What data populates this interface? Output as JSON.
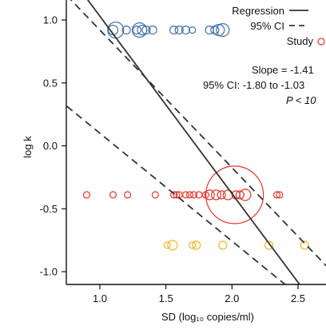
{
  "chart_data": {
    "type": "scatter",
    "xlabel": "SD (log₁₀ copies/ml)",
    "ylabel": "log k",
    "xlim": [
      0.75,
      2.75
    ],
    "ylim": [
      -1.1,
      1.08
    ],
    "x_ticks": [
      "1.0",
      "1.5",
      "2.0",
      "2.5"
    ],
    "x_tick_values": [
      1.0,
      1.5,
      2.0,
      2.5
    ],
    "y_ticks": [
      "1.0",
      "0.5",
      "0.0",
      "-0.5",
      "-1.0"
    ],
    "y_tick_values": [
      1.0,
      0.5,
      0.0,
      -0.5,
      -1.0
    ],
    "grid": false,
    "legend": {
      "placement": "top-right",
      "entries": [
        {
          "label": "Regression",
          "style": "solid"
        },
        {
          "label": "95% CI",
          "style": "dashed"
        },
        {
          "label": "Study",
          "style": "circle",
          "color": "#e8342b"
        }
      ]
    },
    "annotations": {
      "slope": "Slope = -1.41",
      "ci": "95% CI: -1.80 to -1.03",
      "p": "P < 10"
    },
    "regression": {
      "slope": -1.41,
      "intercept": 2.44
    },
    "ci_lines": [
      {
        "x": [
          1.0,
          2.5
        ],
        "y": [
          0.92,
          -0.72
        ]
      },
      {
        "x": [
          1.0,
          2.4
        ],
        "y": [
          0.1,
          -1.1
        ]
      }
    ],
    "series": [
      {
        "color": "#3e72a8",
        "points": [
          {
            "x": 1.1,
            "y": 0.92,
            "r": 6
          },
          {
            "x": 1.12,
            "y": 0.92,
            "r": 10
          },
          {
            "x": 1.2,
            "y": 0.92,
            "r": 5
          },
          {
            "x": 1.28,
            "y": 0.92,
            "r": 5
          },
          {
            "x": 1.3,
            "y": 0.92,
            "r": 9
          },
          {
            "x": 1.32,
            "y": 0.92,
            "r": 6
          },
          {
            "x": 1.35,
            "y": 0.92,
            "r": 5
          },
          {
            "x": 1.4,
            "y": 0.92,
            "r": 5
          },
          {
            "x": 1.56,
            "y": 0.92,
            "r": 5
          },
          {
            "x": 1.6,
            "y": 0.92,
            "r": 5
          },
          {
            "x": 1.65,
            "y": 0.92,
            "r": 5
          },
          {
            "x": 1.7,
            "y": 0.92,
            "r": 4
          },
          {
            "x": 1.83,
            "y": 0.92,
            "r": 5
          },
          {
            "x": 1.87,
            "y": 0.92,
            "r": 5
          },
          {
            "x": 1.9,
            "y": 0.92,
            "r": 7
          },
          {
            "x": 1.93,
            "y": 0.92,
            "r": 8
          }
        ]
      },
      {
        "color": "#e8342b",
        "points": [
          {
            "x": 0.9,
            "y": -0.39,
            "r": 4
          },
          {
            "x": 1.1,
            "y": -0.39,
            "r": 4
          },
          {
            "x": 1.21,
            "y": -0.39,
            "r": 4
          },
          {
            "x": 1.42,
            "y": -0.39,
            "r": 4
          },
          {
            "x": 1.56,
            "y": -0.39,
            "r": 4
          },
          {
            "x": 1.58,
            "y": -0.39,
            "r": 4
          },
          {
            "x": 1.6,
            "y": -0.39,
            "r": 4
          },
          {
            "x": 1.65,
            "y": -0.39,
            "r": 4
          },
          {
            "x": 1.68,
            "y": -0.39,
            "r": 4
          },
          {
            "x": 1.71,
            "y": -0.39,
            "r": 4
          },
          {
            "x": 1.75,
            "y": -0.39,
            "r": 4
          },
          {
            "x": 1.8,
            "y": -0.39,
            "r": 4
          },
          {
            "x": 1.83,
            "y": -0.39,
            "r": 6
          },
          {
            "x": 1.88,
            "y": -0.39,
            "r": 6
          },
          {
            "x": 1.92,
            "y": -0.39,
            "r": 5
          },
          {
            "x": 1.97,
            "y": -0.39,
            "r": 6
          },
          {
            "x": 2.02,
            "y": -0.39,
            "r": 36
          },
          {
            "x": 2.03,
            "y": -0.39,
            "r": 5
          },
          {
            "x": 2.06,
            "y": -0.39,
            "r": 5
          },
          {
            "x": 2.1,
            "y": -0.39,
            "r": 7
          },
          {
            "x": 2.34,
            "y": -0.39,
            "r": 4
          },
          {
            "x": 2.36,
            "y": -0.39,
            "r": 4
          }
        ]
      },
      {
        "color": "#f2b51d",
        "points": [
          {
            "x": 1.51,
            "y": -0.79,
            "r": 4
          },
          {
            "x": 1.55,
            "y": -0.79,
            "r": 6
          },
          {
            "x": 1.7,
            "y": -0.79,
            "r": 4
          },
          {
            "x": 1.73,
            "y": -0.79,
            "r": 5
          },
          {
            "x": 1.93,
            "y": -0.79,
            "r": 5
          },
          {
            "x": 2.28,
            "y": -0.79,
            "r": 5
          },
          {
            "x": 2.55,
            "y": -0.79,
            "r": 5
          }
        ]
      }
    ]
  }
}
